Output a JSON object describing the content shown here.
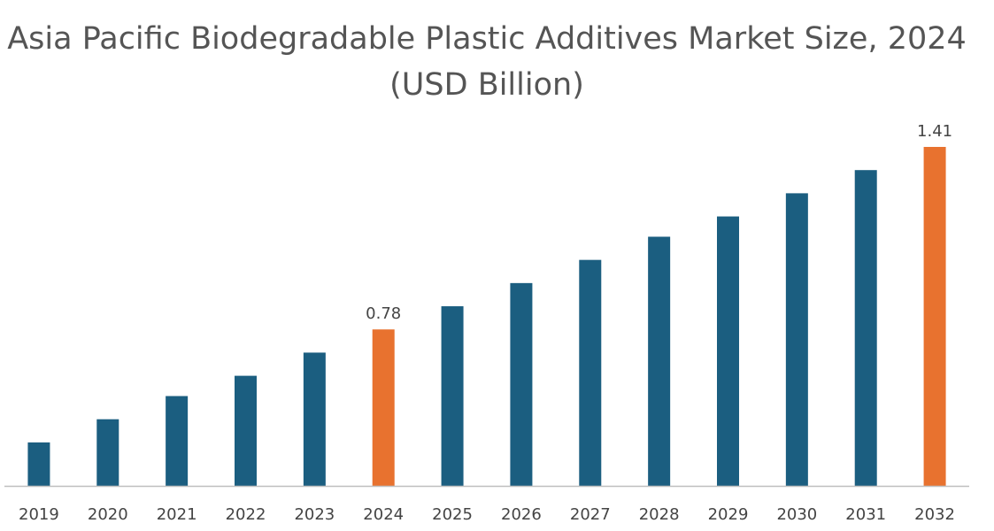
{
  "chart_data": {
    "type": "bar",
    "title": "Asia Pacific Biodegradable Plastic Additives Market Size, 2024 (USD Billion)",
    "xlabel": "",
    "ylabel": "",
    "categories": [
      "2019",
      "2020",
      "2021",
      "2022",
      "2023",
      "2024",
      "2025",
      "2026",
      "2027",
      "2028",
      "2029",
      "2030",
      "2031",
      "2032"
    ],
    "values": [
      0.39,
      0.47,
      0.55,
      0.62,
      0.7,
      0.78,
      0.86,
      0.94,
      1.02,
      1.1,
      1.17,
      1.25,
      1.33,
      1.41
    ],
    "data_labels": {
      "5": "0.78",
      "13": "1.41"
    },
    "highlight_indices": [
      5,
      13
    ],
    "ylim": [
      0.24,
      1.52
    ],
    "grid": false,
    "legend": "none",
    "colors": {
      "bar": "#1b5e80",
      "highlight": "#e8722f",
      "axis": "#bfbfbf"
    }
  }
}
